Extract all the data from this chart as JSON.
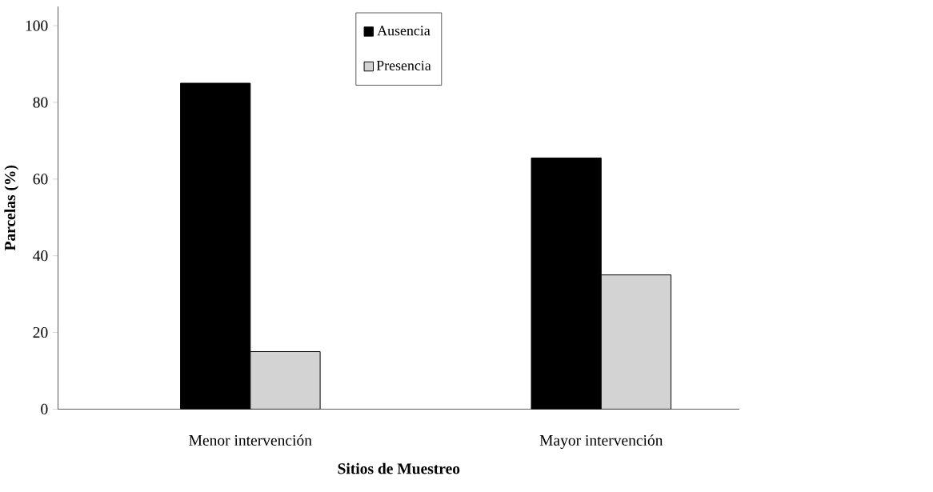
{
  "chart_data": {
    "type": "bar",
    "xlabel": "Sitios de Muestreo",
    "ylabel": "Parcelas  (%)",
    "categories": [
      "Menor intervención",
      "Mayor intervención"
    ],
    "series": [
      {
        "name": "Ausencia",
        "color": "#000000",
        "values": [
          85,
          65.5
        ]
      },
      {
        "name": "Presencia",
        "color": "#d3d3d3",
        "values": [
          15,
          35
        ]
      }
    ],
    "ylim": [
      0,
      105
    ],
    "yticks": [
      0,
      20,
      40,
      60,
      80,
      100
    ],
    "grid": false,
    "legend": "top"
  }
}
